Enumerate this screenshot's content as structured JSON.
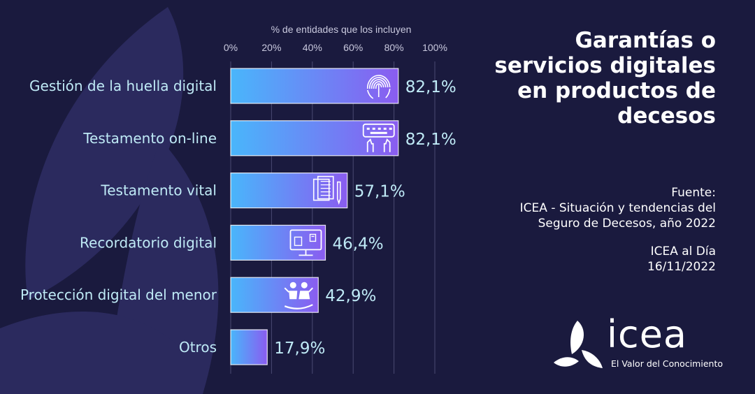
{
  "chart_data": {
    "type": "bar",
    "orientation": "horizontal",
    "xlabel": "% de entidades que los incluyen",
    "xlim": [
      0,
      100
    ],
    "ticks": [
      "0%",
      "20%",
      "40%",
      "60%",
      "80%",
      "100%"
    ],
    "grid": true,
    "categories": [
      "Gestión de la huella digital",
      "Testamento on-line",
      "Testamento vital",
      "Recordatorio digital",
      "Protección digital del menor",
      "Otros"
    ],
    "values": [
      82.1,
      82.1,
      57.1,
      46.4,
      42.9,
      17.9
    ],
    "value_labels": [
      "82,1%",
      "82,1%",
      "57,1%",
      "46,4%",
      "42,9%",
      "17,9%"
    ],
    "icons": [
      "fingerprint-icon",
      "keyboard-hands-icon",
      "documents-pen-icon",
      "monitor-reminder-icon",
      "children-hand-icon",
      ""
    ],
    "colors": {
      "bar_start": "#49b6fb",
      "bar_end": "#8a5cf0"
    }
  },
  "title": "Garantías o servicios digitales en productos de decesos",
  "source": {
    "label": "Fuente:",
    "line1": "ICEA - Situación y tendencias del",
    "line2": "Seguro de Decesos, año 2022",
    "line3": "ICEA al Día",
    "line4": "16/11/2022"
  },
  "logo": {
    "name": "icea",
    "tagline": "El Valor del Conocimiento"
  },
  "colors": {
    "background": "#1a1a3e",
    "decoration": "#2b2a5e",
    "text_light": "#bfeaf6"
  }
}
